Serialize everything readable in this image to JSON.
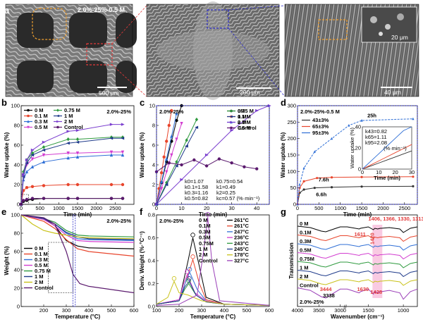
{
  "panel_labels": {
    "a": "a",
    "b": "b",
    "c": "c",
    "d": "d",
    "e": "e",
    "f": "f",
    "g": "g"
  },
  "micrographs": {
    "img1_title": "2.0%-25%-0.5 M",
    "img1_scale": "500 μm",
    "img2_scale": "200 μm",
    "img3_scale": "40 μm",
    "img3_inset_scale": "20 μm"
  },
  "chart_data": [
    {
      "panel": "b",
      "type": "line",
      "title": "2.0%-25%",
      "xlabel": "Time (min)",
      "ylabel": "Water uptake (%)",
      "xlim": [
        0,
        3000
      ],
      "ylim": [
        0,
        100
      ],
      "xticks": [
        "0",
        "500",
        "1000",
        "1500",
        "2000",
        "2500"
      ],
      "yticks": [
        "0",
        "20",
        "40",
        "60",
        "80",
        "100"
      ],
      "series": [
        {
          "name": "0 M",
          "color": "#000000",
          "x": [
            0,
            60,
            150,
            300,
            600,
            1250,
            1500,
            2400,
            2700
          ],
          "y": [
            0,
            3,
            4,
            5,
            6,
            6,
            6,
            6,
            6
          ]
        },
        {
          "name": "0.1 M",
          "color": "#e8452c",
          "x": [
            0,
            60,
            150,
            300,
            600,
            1250,
            1500,
            2400,
            2700
          ],
          "y": [
            0,
            14,
            17,
            18,
            19,
            20,
            20,
            20,
            20
          ]
        },
        {
          "name": "0.3 M",
          "color": "#2f6fd6",
          "x": [
            0,
            60,
            150,
            300,
            600,
            1250,
            1500,
            2400,
            2700
          ],
          "y": [
            0,
            25,
            33,
            38,
            43,
            47,
            48,
            50,
            50
          ]
        },
        {
          "name": "0.5 M",
          "color": "#d23dd0",
          "x": [
            0,
            60,
            150,
            300,
            600,
            1250,
            1500,
            2400,
            2700
          ],
          "y": [
            0,
            30,
            40,
            46,
            50,
            52,
            52,
            53,
            53
          ]
        },
        {
          "name": "0.75 M",
          "color": "#2e9a3e",
          "x": [
            0,
            60,
            150,
            300,
            600,
            1250,
            1500,
            2400,
            2700
          ],
          "y": [
            0,
            33,
            45,
            52,
            58,
            66,
            66,
            68,
            68
          ]
        },
        {
          "name": "1 M",
          "color": "#1e3a8a",
          "x": [
            0,
            60,
            150,
            300,
            600,
            1250,
            1500,
            2400,
            2700
          ],
          "y": [
            0,
            28,
            42,
            50,
            55,
            62,
            63,
            67,
            67
          ]
        },
        {
          "name": "2 M",
          "color": "#7b3fcf",
          "x": [
            0,
            60,
            150,
            300,
            600,
            1250,
            1500,
            2400,
            2700
          ],
          "y": [
            0,
            30,
            45,
            55,
            63,
            74,
            75,
            81,
            81
          ]
        },
        {
          "name": "Control",
          "color": "#5b1a6e",
          "x": [
            0,
            60,
            150,
            300,
            600,
            1250,
            1500,
            2400,
            2700
          ],
          "y": [
            0,
            4,
            5,
            6,
            6,
            6,
            6,
            6,
            6
          ]
        }
      ]
    },
    {
      "panel": "c",
      "type": "line",
      "title": "2.0%-25%",
      "xlabel": "Time (min)",
      "ylabel": "Water uptake (%)",
      "xlim": [
        0,
        45
      ],
      "ylim": [
        0,
        10
      ],
      "xticks": [
        "0",
        "10",
        "20",
        "30",
        "40"
      ],
      "yticks": [
        "0",
        "2",
        "4",
        "6",
        "8",
        "10"
      ],
      "annotations": [
        "k0=1.07",
        "k0.1=1.58",
        "k0.3=1.16",
        "k0.5=0.82",
        "k0.75=0.54",
        "k1=0.49",
        "k2=0.25",
        "kc=0.57 (%·min⁻¹)"
      ],
      "series": [
        {
          "name": "0M",
          "color": "#000000",
          "x": [
            0,
            2,
            4,
            6,
            8,
            10
          ],
          "y": [
            0,
            2.2,
            4.3,
            6.4,
            8.5,
            10
          ]
        },
        {
          "name": "0.1 M",
          "color": "#e8452c",
          "x": [
            0,
            1,
            2,
            3,
            4,
            5,
            6
          ],
          "y": [
            0,
            1.6,
            3.2,
            4.8,
            6.4,
            8,
            9.5
          ]
        },
        {
          "name": "0.3 M",
          "color": "#2f6fd6",
          "x": [
            0,
            2,
            4,
            6,
            8
          ],
          "y": [
            0,
            2.3,
            4.6,
            6.9,
            9.2
          ]
        },
        {
          "name": "0.5 M",
          "color": "#d23dd0",
          "x": [
            0,
            2,
            4,
            6,
            8,
            10
          ],
          "y": [
            0,
            1.6,
            3.3,
            5,
            6.6,
            8.2
          ]
        },
        {
          "name": "0.75 M",
          "color": "#2e9a3e",
          "x": [
            0,
            4,
            8,
            12,
            16
          ],
          "y": [
            0,
            2.2,
            4.3,
            6.5,
            8.6
          ]
        },
        {
          "name": "1 M",
          "color": "#1e3a8a",
          "x": [
            0,
            4,
            8,
            12,
            16
          ],
          "y": [
            0,
            2,
            3.9,
            5.9,
            7.8
          ]
        },
        {
          "name": "2 M",
          "color": "#7b3fcf",
          "x": [
            0,
            10,
            20,
            30,
            40,
            45
          ],
          "y": [
            0,
            2.5,
            5,
            7.5,
            9.5,
            10
          ]
        },
        {
          "name": "Control",
          "color": "#5b1a6e",
          "x": [
            0,
            5,
            10,
            15,
            20,
            25,
            30,
            35,
            40
          ],
          "y": [
            3.3,
            4.2,
            4,
            4.5,
            3.9,
            4.6,
            4.2,
            3.8,
            3.6
          ]
        }
      ]
    },
    {
      "panel": "d",
      "type": "line",
      "title": "2.0%-25%-0.5 M",
      "xlabel": "Time (min)",
      "ylabel": "Water uptake (%)",
      "xlim": [
        0,
        2800
      ],
      "ylim": [
        0,
        300
      ],
      "xticks": [
        "0",
        "500",
        "1000",
        "1500",
        "2000",
        "2500"
      ],
      "yticks": [
        "0",
        "50",
        "100",
        "150",
        "200",
        "250",
        "300"
      ],
      "annotations": [
        "25h",
        "7.6h",
        "6.6h"
      ],
      "series": [
        {
          "name": "43±3%",
          "color": "#333333",
          "x": [
            0,
            50,
            150,
            400,
            800,
            1500,
            2700
          ],
          "y": [
            0,
            35,
            45,
            50,
            52,
            54,
            55
          ]
        },
        {
          "name": "65±3%",
          "color": "#e8452c",
          "x": [
            0,
            50,
            150,
            456,
            800,
            1500,
            2700
          ],
          "y": [
            0,
            50,
            70,
            80,
            82,
            83,
            84
          ]
        },
        {
          "name": "95±3%",
          "color": "#2f6fd6",
          "x": [
            0,
            50,
            150,
            400,
            800,
            1200,
            1500,
            2700
          ],
          "y": [
            0,
            60,
            110,
            160,
            200,
            240,
            255,
            260
          ]
        }
      ],
      "inset": {
        "xlabel": "Time (min)",
        "ylabel": "Water uptake (%)",
        "xlim": [
          0,
          30
        ],
        "ylim": [
          0,
          40
        ],
        "xticks": [
          "0",
          "10",
          "20",
          "30"
        ],
        "yticks": [
          "0",
          "20",
          "40"
        ],
        "annotations": [
          "k43=0.82",
          "k65=1.11",
          "k95=2.08",
          "(%·min⁻¹)"
        ]
      }
    },
    {
      "panel": "e",
      "type": "line",
      "title": "2.0%-25%",
      "xlabel": "Temperature (°C)",
      "ylabel": "Weight (%)",
      "xlim": [
        100,
        600
      ],
      "ylim": [
        0,
        100
      ],
      "xticks": [
        "200",
        "300",
        "400",
        "500",
        "600"
      ],
      "yticks": [
        "0",
        "20",
        "40",
        "60",
        "80",
        "100"
      ],
      "series": [
        {
          "name": "0 M",
          "color": "#000000",
          "x": [
            100,
            200,
            250,
            300,
            350,
            400,
            600
          ],
          "y": [
            100,
            96,
            88,
            72,
            66,
            64,
            63
          ]
        },
        {
          "name": "0.1 M",
          "color": "#e8452c",
          "x": [
            100,
            200,
            250,
            300,
            350,
            400,
            600
          ],
          "y": [
            100,
            93,
            85,
            73,
            63,
            60,
            55
          ]
        },
        {
          "name": "0.3 M",
          "color": "#2f6fd6",
          "x": [
            100,
            200,
            250,
            300,
            350,
            400,
            600
          ],
          "y": [
            100,
            96,
            90,
            80,
            74,
            73,
            72
          ]
        },
        {
          "name": "0.5 M",
          "color": "#d23dd0",
          "x": [
            100,
            200,
            250,
            300,
            350,
            400,
            600
          ],
          "y": [
            100,
            95,
            88,
            78,
            72,
            71,
            70
          ]
        },
        {
          "name": "0.75 M",
          "color": "#2e9a3e",
          "x": [
            100,
            200,
            250,
            300,
            350,
            400,
            600
          ],
          "y": [
            100,
            96,
            92,
            83,
            78,
            77,
            76
          ]
        },
        {
          "name": "1 M",
          "color": "#1e3a8a",
          "x": [
            100,
            200,
            250,
            300,
            350,
            400,
            600
          ],
          "y": [
            100,
            96,
            90,
            81,
            76,
            74,
            73
          ]
        },
        {
          "name": "2 M",
          "color": "#c9c21a",
          "x": [
            100,
            150,
            200,
            250,
            300,
            350,
            400,
            600
          ],
          "y": [
            100,
            90,
            83,
            80,
            78,
            76,
            75,
            74
          ]
        },
        {
          "name": "Control",
          "color": "#5b1a6e",
          "x": [
            100,
            200,
            250,
            300,
            330,
            360,
            400,
            600
          ],
          "y": [
            100,
            97,
            90,
            60,
            35,
            25,
            22,
            15
          ]
        }
      ]
    },
    {
      "panel": "f",
      "type": "line",
      "title": "2.0%-25%",
      "xlabel": "Temperature (°C)",
      "ylabel": "Deriv. Weight (%·°C⁻¹)",
      "xlim": [
        100,
        600
      ],
      "ylim": [
        0,
        0.8
      ],
      "xticks": [
        "100",
        "200",
        "300",
        "400",
        "500",
        "600"
      ],
      "yticks": [
        "0.0",
        "0.2",
        "0.4",
        "0.6",
        "0.8"
      ],
      "series": [
        {
          "name": "0 M",
          "color": "#000000",
          "peak": "261°C",
          "x": [
            100,
            200,
            240,
            261,
            290,
            320,
            400,
            600
          ],
          "y": [
            0.02,
            0.05,
            0.4,
            0.6,
            0.35,
            0.08,
            0.02,
            0.01
          ]
        },
        {
          "name": "0.1M",
          "color": "#e8452c",
          "peak": "261°C",
          "x": [
            100,
            200,
            240,
            261,
            290,
            320,
            400,
            600
          ],
          "y": [
            0.02,
            0.05,
            0.28,
            0.41,
            0.2,
            0.06,
            0.02,
            0.01
          ]
        },
        {
          "name": "0.3M",
          "color": "#2f6fd6",
          "peak": "247°C",
          "x": [
            100,
            200,
            230,
            247,
            280,
            320,
            400,
            600
          ],
          "y": [
            0.02,
            0.05,
            0.22,
            0.3,
            0.15,
            0.05,
            0.02,
            0.01
          ]
        },
        {
          "name": "0.5M",
          "color": "#d23dd0",
          "peak": "236°C",
          "x": [
            100,
            200,
            220,
            236,
            270,
            320,
            400,
            600
          ],
          "y": [
            0.02,
            0.06,
            0.2,
            0.28,
            0.12,
            0.05,
            0.02,
            0.01
          ]
        },
        {
          "name": "0.75M",
          "color": "#2e9a3e",
          "peak": "243°C",
          "x": [
            100,
            200,
            225,
            243,
            275,
            320,
            400,
            600
          ],
          "y": [
            0.02,
            0.05,
            0.15,
            0.2,
            0.1,
            0.04,
            0.02,
            0.01
          ]
        },
        {
          "name": "1 M",
          "color": "#1e3a8a",
          "peak": "245°C",
          "x": [
            100,
            200,
            225,
            245,
            275,
            320,
            400,
            600
          ],
          "y": [
            0.02,
            0.05,
            0.17,
            0.22,
            0.1,
            0.04,
            0.02,
            0.01
          ]
        },
        {
          "name": "2 M",
          "color": "#c9c21a",
          "peak": "178°C",
          "x": [
            100,
            150,
            178,
            200,
            240,
            300,
            400,
            600
          ],
          "y": [
            0.02,
            0.08,
            0.22,
            0.12,
            0.1,
            0.05,
            0.02,
            0.01
          ]
        },
        {
          "name": "Control",
          "color": "#9b3fb8",
          "peak": "327°C",
          "x": [
            100,
            200,
            280,
            310,
            327,
            345,
            380,
            600
          ],
          "y": [
            0.01,
            0.02,
            0.1,
            0.5,
            0.78,
            0.4,
            0.05,
            0.01
          ]
        }
      ]
    },
    {
      "panel": "g",
      "type": "line",
      "title": "2.0%-25%",
      "xlabel": "Wavenumber (cm⁻¹)",
      "ylabel": "Transmission",
      "xticks": [
        "4000",
        "3500",
        "3000",
        "1500",
        "1000"
      ],
      "annotations": [
        "1406, 1366, 1330, 1313",
        "1611",
        "1420",
        "3444",
        "3338",
        "1630",
        "1428"
      ],
      "series": [
        {
          "name": "0 M",
          "color": "#000000"
        },
        {
          "name": "0.1M",
          "color": "#e8452c"
        },
        {
          "name": "0.3M",
          "color": "#2f6fd6"
        },
        {
          "name": "0.5M",
          "color": "#d23dd0"
        },
        {
          "name": "0.75M",
          "color": "#2e9a3e"
        },
        {
          "name": "1 M",
          "color": "#1e3a8a"
        },
        {
          "name": "2 M",
          "color": "#c9c21a"
        },
        {
          "name": "Control",
          "color": "#9b3fb8"
        }
      ]
    }
  ]
}
